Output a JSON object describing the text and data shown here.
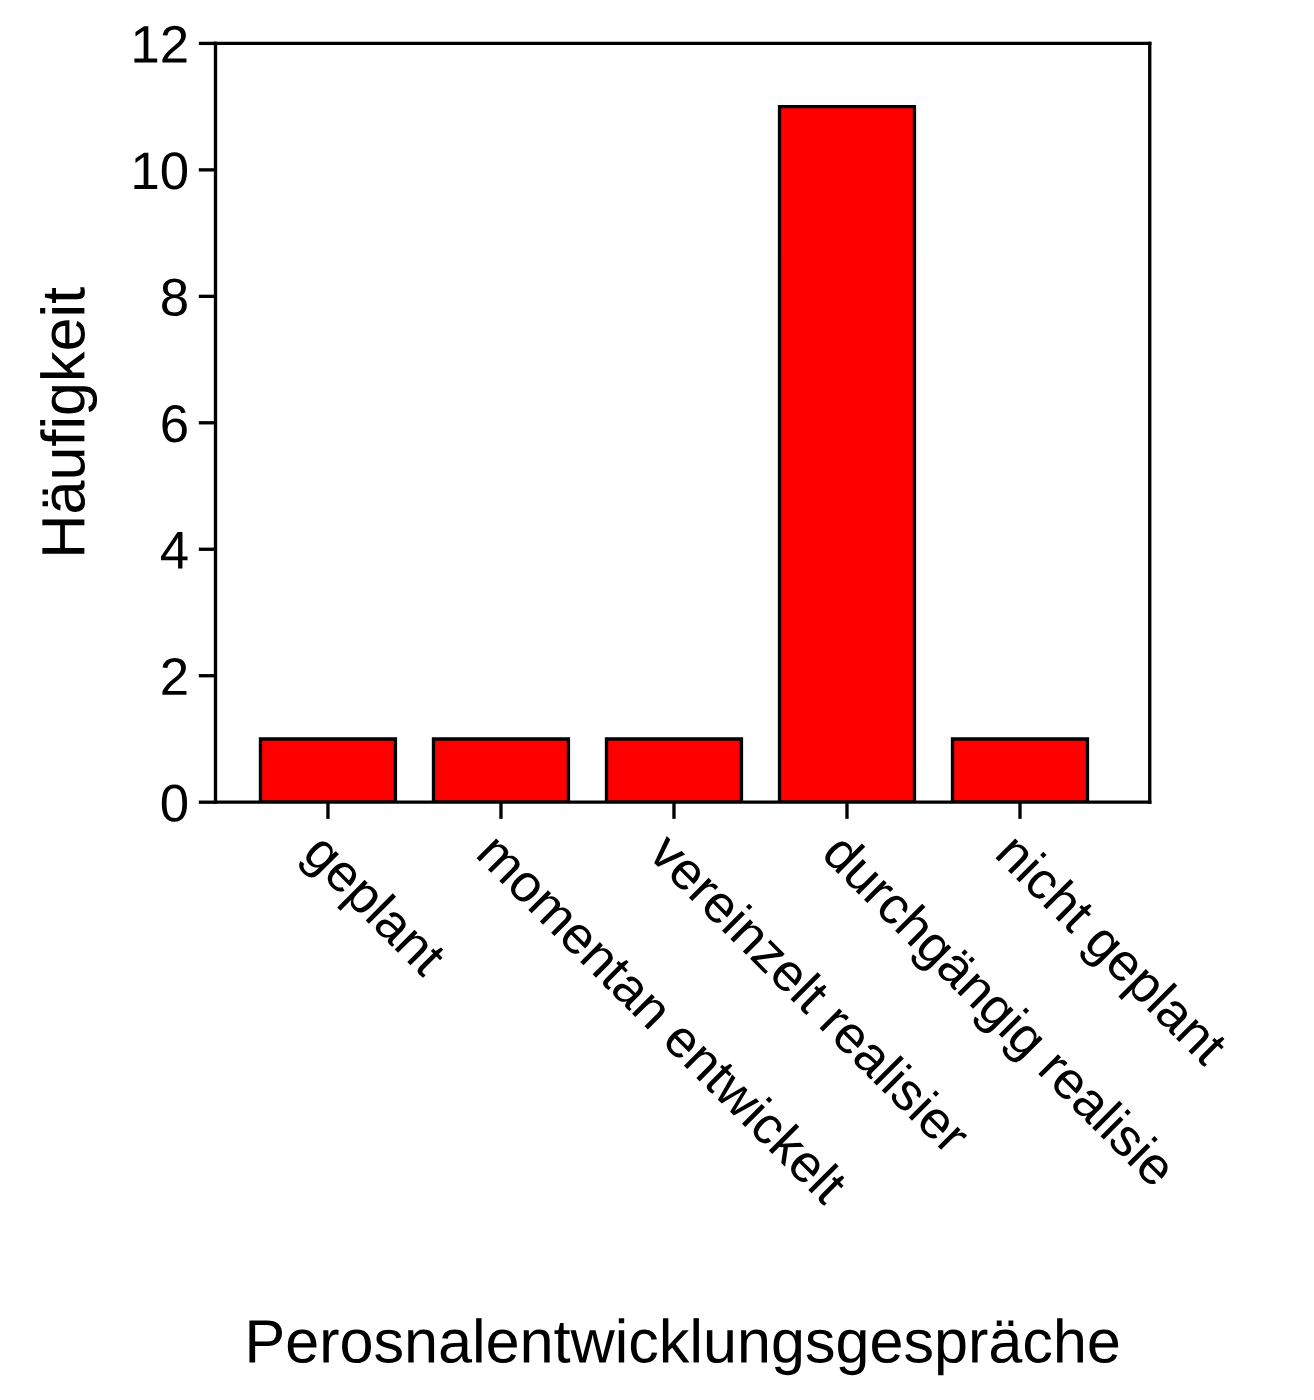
{
  "chart_data": {
    "type": "bar",
    "xlabel": "Perosnalentwicklungsgespräche",
    "ylabel": "Häufigkeit",
    "categories": [
      "geplant",
      "momentan entwickelt",
      "vereinzelt realisier",
      "durchgängig realisie",
      "nicht geplant"
    ],
    "values": [
      1,
      1,
      1,
      11,
      1
    ],
    "color": "#ff0000",
    "ylim": [
      0,
      12
    ],
    "yticks": [
      0,
      2,
      4,
      6,
      8,
      10,
      12
    ],
    "grid": false,
    "legend": false
  }
}
